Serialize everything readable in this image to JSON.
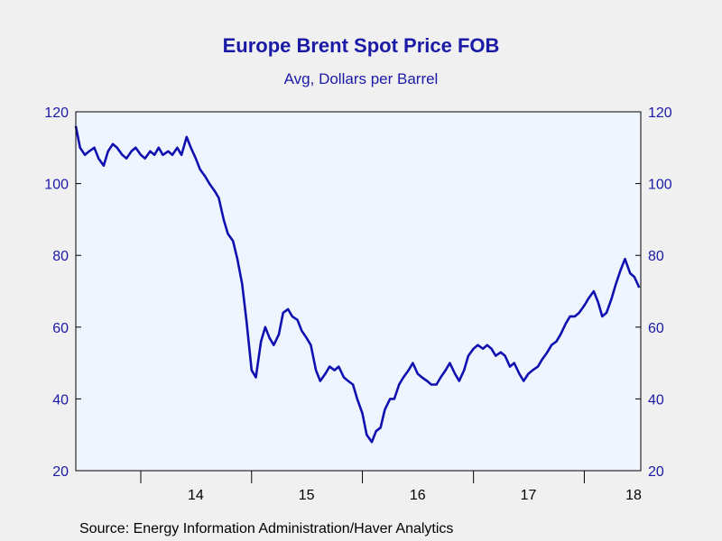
{
  "chart_data": {
    "type": "line",
    "title": "Europe Brent Spot Price FOB",
    "subtitle": "Avg, Dollars per Barrel",
    "source": "Source:  Energy Information Administration/Haver Analytics",
    "xlabel": "",
    "ylabel": "",
    "ylim": [
      20,
      120
    ],
    "y_ticks": [
      20,
      40,
      60,
      80,
      100,
      120
    ],
    "x_range": [
      "2013-06-01",
      "2018-07-06"
    ],
    "x_ticks": [
      {
        "label": "14",
        "date": "2014-07-01"
      },
      {
        "label": "15",
        "date": "2015-07-01"
      },
      {
        "label": "16",
        "date": "2016-07-01"
      },
      {
        "label": "17",
        "date": "2017-07-01"
      },
      {
        "label": "18",
        "date": "2018-07-01"
      }
    ],
    "grid": false,
    "line_color": "#1010b0",
    "plot_background": "#eef5ff",
    "series": [
      {
        "x": [
          "2013-06-01",
          "2013-06-15",
          "2013-07-01",
          "2013-07-15",
          "2013-08-01",
          "2013-08-15",
          "2013-09-01",
          "2013-09-15",
          "2013-10-01",
          "2013-10-15",
          "2013-11-01",
          "2013-11-15",
          "2013-12-01",
          "2013-12-15",
          "2014-01-01",
          "2014-01-15",
          "2014-02-01",
          "2014-02-15",
          "2014-03-01",
          "2014-03-15",
          "2014-04-01",
          "2014-04-15",
          "2014-05-01",
          "2014-05-15",
          "2014-06-01",
          "2014-06-15",
          "2014-07-01",
          "2014-07-15",
          "2014-08-01",
          "2014-08-15",
          "2014-09-01",
          "2014-09-15",
          "2014-10-01",
          "2014-10-15",
          "2014-11-01",
          "2014-11-15",
          "2014-12-01",
          "2014-12-15",
          "2015-01-01",
          "2015-01-15",
          "2015-02-01",
          "2015-02-15",
          "2015-03-01",
          "2015-03-15",
          "2015-04-01",
          "2015-04-15",
          "2015-05-01",
          "2015-05-15",
          "2015-06-01",
          "2015-06-15",
          "2015-07-01",
          "2015-07-15",
          "2015-08-01",
          "2015-08-15",
          "2015-09-01",
          "2015-09-15",
          "2015-10-01",
          "2015-10-15",
          "2015-11-01",
          "2015-11-15",
          "2015-12-01",
          "2015-12-15",
          "2016-01-01",
          "2016-01-15",
          "2016-02-01",
          "2016-02-15",
          "2016-03-01",
          "2016-03-15",
          "2016-04-01",
          "2016-04-15",
          "2016-05-01",
          "2016-05-15",
          "2016-06-01",
          "2016-06-15",
          "2016-07-01",
          "2016-07-15",
          "2016-08-01",
          "2016-08-15",
          "2016-09-01",
          "2016-09-15",
          "2016-10-01",
          "2016-10-15",
          "2016-11-01",
          "2016-11-15",
          "2016-12-01",
          "2016-12-15",
          "2017-01-01",
          "2017-01-15",
          "2017-02-01",
          "2017-02-15",
          "2017-03-01",
          "2017-03-15",
          "2017-04-01",
          "2017-04-15",
          "2017-05-01",
          "2017-05-15",
          "2017-06-01",
          "2017-06-15",
          "2017-07-01",
          "2017-07-15",
          "2017-08-01",
          "2017-08-15",
          "2017-09-01",
          "2017-09-15",
          "2017-10-01",
          "2017-10-15",
          "2017-11-01",
          "2017-11-15",
          "2017-12-01",
          "2017-12-15",
          "2018-01-01",
          "2018-01-15",
          "2018-02-01",
          "2018-02-15",
          "2018-03-01",
          "2018-03-15",
          "2018-04-01",
          "2018-04-15",
          "2018-05-01",
          "2018-05-15",
          "2018-06-01",
          "2018-06-15",
          "2018-07-01"
        ],
        "y": [
          116,
          110,
          108,
          109,
          110,
          107,
          105,
          109,
          111,
          110,
          108,
          107,
          109,
          110,
          108,
          107,
          109,
          108,
          110,
          108,
          109,
          108,
          110,
          108,
          113,
          110,
          107,
          104,
          102,
          100,
          98,
          96,
          90,
          86,
          84,
          79,
          72,
          62,
          48,
          46,
          56,
          60,
          57,
          55,
          58,
          64,
          65,
          63,
          62,
          59,
          57,
          55,
          48,
          45,
          47,
          49,
          48,
          49,
          46,
          45,
          44,
          40,
          36,
          30,
          28,
          31,
          32,
          37,
          40,
          40,
          44,
          46,
          48,
          50,
          47,
          46,
          45,
          44,
          44,
          46,
          48,
          50,
          47,
          45,
          48,
          52,
          54,
          55,
          54,
          55,
          54,
          52,
          53,
          52,
          49,
          50,
          47,
          45,
          47,
          48,
          49,
          51,
          53,
          55,
          56,
          58,
          61,
          63,
          63,
          64,
          66,
          68,
          70,
          67,
          63,
          64,
          68,
          72,
          76,
          79,
          75,
          74,
          71
        ]
      }
    ]
  }
}
